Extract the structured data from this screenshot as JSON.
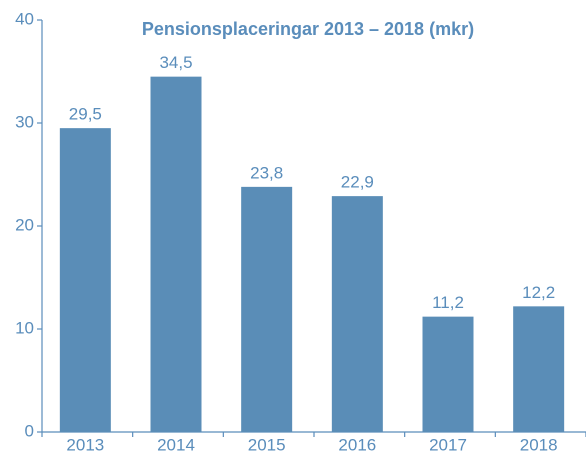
{
  "chart_data": {
    "type": "bar",
    "title": "Pensionsplaceringar 2013 – 2018 (mkr)",
    "categories": [
      "2013",
      "2014",
      "2015",
      "2016",
      "2017",
      "2018"
    ],
    "values": [
      29.5,
      34.5,
      23.8,
      22.9,
      11.2,
      12.2
    ],
    "value_labels": [
      "29,5",
      "34,5",
      "23,8",
      "22,9",
      "11,2",
      "12,2"
    ],
    "color": "#5a8db7",
    "ylim": [
      0,
      40
    ],
    "yticks": [
      0,
      10,
      20,
      30,
      40
    ],
    "grid": false
  }
}
